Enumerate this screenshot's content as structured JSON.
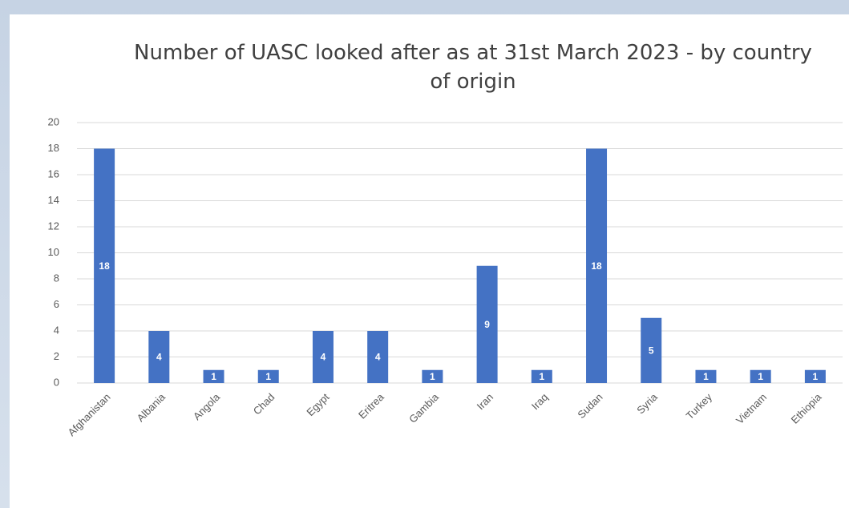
{
  "chart_data": {
    "type": "bar",
    "title": "Number of UASC looked after as at 31st March 2023 - by country of origin",
    "categories": [
      "Afghanistan",
      "Albania",
      "Angola",
      "Chad",
      "Egypt",
      "Eritrea",
      "Gambia",
      "Iran",
      "Iraq",
      "Sudan",
      "Syria",
      "Turkey",
      "Vietnam",
      "Ethiopia"
    ],
    "values": [
      18,
      4,
      1,
      1,
      4,
      4,
      1,
      9,
      1,
      18,
      5,
      1,
      1,
      1
    ],
    "color": "#4472c4",
    "ylim": [
      0,
      20
    ],
    "yticks": [
      0,
      2,
      4,
      6,
      8,
      10,
      12,
      14,
      16,
      18,
      20
    ],
    "grid": true
  }
}
